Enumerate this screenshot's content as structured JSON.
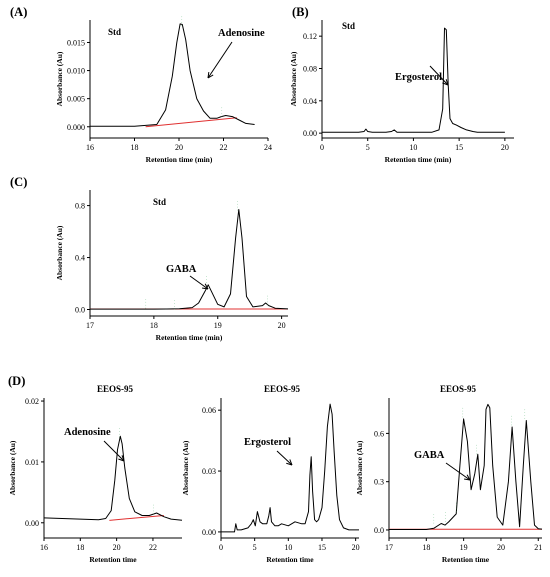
{
  "figure": {
    "labels": {
      "a": "(A)",
      "b": "(B)",
      "c": "(C)",
      "d": "(D)"
    }
  },
  "chart_data": [
    {
      "id": "A",
      "type": "line",
      "subtitle": "Std",
      "xlabel": "Retention time (min)",
      "ylabel": "Absorbance (Au)",
      "xlim": [
        16,
        24
      ],
      "ylim": [
        -0.002,
        0.019
      ],
      "xticks": [
        16,
        18,
        20,
        22,
        24
      ],
      "yticks": [
        0.0,
        0.005,
        0.01,
        0.015
      ],
      "ytick_labels": [
        "0.000",
        "0.005",
        "0.010",
        "0.015"
      ],
      "series": [
        {
          "x": [
            16,
            17,
            18,
            19.0,
            19.4,
            19.7,
            19.9,
            20.05,
            20.15,
            20.3,
            20.5,
            20.8,
            21.1,
            21.4,
            21.7,
            21.9,
            22.1,
            22.4,
            22.7,
            23.0,
            23.4
          ],
          "y": [
            0.0001,
            0.0001,
            0.0001,
            0.0004,
            0.003,
            0.009,
            0.015,
            0.0183,
            0.0182,
            0.0155,
            0.01,
            0.005,
            0.0028,
            0.0015,
            0.0015,
            0.0018,
            0.002,
            0.0018,
            0.0012,
            0.0006,
            0.0004
          ]
        }
      ],
      "baseline": {
        "x": [
          18.5,
          22.6
        ],
        "y": [
          0.0,
          0.0016
        ]
      },
      "annotations": [
        {
          "text": "Adenosine"
        }
      ]
    },
    {
      "id": "B",
      "type": "line",
      "subtitle": "Std",
      "xlabel": "Retention time (min)",
      "ylabel": "Absorbance (Au)",
      "xlim": [
        0,
        21
      ],
      "ylim": [
        -0.006,
        0.14
      ],
      "xticks": [
        0,
        5,
        10,
        15,
        20
      ],
      "yticks": [
        0.0,
        0.04,
        0.08,
        0.12
      ],
      "ytick_labels": [
        "0.00",
        "0.04",
        "0.08",
        "0.12"
      ],
      "series": [
        {
          "x": [
            0,
            1,
            2,
            3,
            4,
            4.6,
            4.8,
            5.0,
            5.5,
            6,
            7,
            7.6,
            7.9,
            8.2,
            9,
            10,
            11,
            12,
            12.8,
            13.2,
            13.4,
            13.6,
            13.8,
            14.0,
            14.3,
            14.7,
            15.2,
            15.8,
            16.5,
            17,
            18,
            20
          ],
          "y": [
            0.001,
            0.001,
            0.001,
            0.001,
            0.001,
            0.002,
            0.005,
            0.002,
            0.001,
            0.001,
            0.001,
            0.002,
            0.004,
            0.001,
            0.001,
            0.001,
            0.001,
            0.001,
            0.004,
            0.03,
            0.13,
            0.128,
            0.06,
            0.018,
            0.012,
            0.01,
            0.007,
            0.004,
            0.002,
            0.001,
            0.001,
            0.001
          ]
        }
      ],
      "annotations": [
        {
          "text": "Ergosterol"
        }
      ]
    },
    {
      "id": "C",
      "type": "line",
      "subtitle": "Std",
      "xlabel": "Retention time (min)",
      "ylabel": "Absorbance (Au)",
      "xlim": [
        17,
        20.1
      ],
      "ylim": [
        -0.05,
        0.92
      ],
      "xticks": [
        17,
        18,
        19,
        20
      ],
      "yticks": [
        0.0,
        0.4,
        0.8
      ],
      "ytick_labels": [
        "0.0",
        "0.4",
        "0.8"
      ],
      "series": [
        {
          "x": [
            17,
            17.5,
            18,
            18.2,
            18.4,
            18.6,
            18.7,
            18.8,
            18.85,
            18.9,
            19.0,
            19.1,
            19.2,
            19.28,
            19.33,
            19.38,
            19.45,
            19.55,
            19.7,
            19.75,
            19.8,
            19.9,
            20.1
          ],
          "y": [
            0.003,
            0.003,
            0.003,
            0.004,
            0.006,
            0.015,
            0.05,
            0.14,
            0.19,
            0.14,
            0.04,
            0.02,
            0.12,
            0.55,
            0.77,
            0.55,
            0.1,
            0.02,
            0.03,
            0.05,
            0.03,
            0.01,
            0.005
          ]
        }
      ],
      "baseline": {
        "x": [
          17.0,
          20.1
        ],
        "y": [
          0.004,
          0.004
        ]
      },
      "annotations": [
        {
          "text": "GABA"
        }
      ]
    },
    {
      "id": "D1",
      "type": "line",
      "subtitle": "EEOS-95",
      "xlabel": "Retention time",
      "ylabel": "Absorbance (Au)",
      "xlim": [
        16,
        23.6
      ],
      "ylim": [
        -0.0025,
        0.0205
      ],
      "xticks": [
        16,
        18,
        20,
        22
      ],
      "yticks": [
        0.0,
        0.01,
        0.02
      ],
      "ytick_labels": [
        "0.00",
        "0.01",
        "0.02"
      ],
      "series": [
        {
          "x": [
            16,
            17,
            18,
            19,
            19.4,
            19.7,
            19.9,
            20.05,
            20.2,
            20.3,
            20.45,
            20.7,
            21.0,
            21.4,
            21.8,
            22.2,
            22.6,
            23.0,
            23.6
          ],
          "y": [
            0.0008,
            0.0007,
            0.0006,
            0.0005,
            0.0007,
            0.002,
            0.007,
            0.012,
            0.0142,
            0.013,
            0.009,
            0.004,
            0.0018,
            0.0012,
            0.0012,
            0.0016,
            0.001,
            0.0006,
            0.0004
          ]
        }
      ],
      "baseline": {
        "x": [
          19.6,
          22.6
        ],
        "y": [
          0.0004,
          0.0012
        ]
      },
      "annotations": [
        {
          "text": "Adenosine"
        }
      ]
    },
    {
      "id": "D2",
      "type": "line",
      "subtitle": "EEOS-95",
      "xlabel": "Retention time",
      "ylabel": "Absorbance (Au)",
      "xlim": [
        0,
        20.5
      ],
      "ylim": [
        -0.003,
        0.066
      ],
      "xticks": [
        0,
        5,
        10,
        15,
        20
      ],
      "yticks": [
        0.0,
        0.03,
        0.06
      ],
      "ytick_labels": [
        "0.00",
        "0.03",
        "0.06"
      ],
      "series": [
        {
          "x": [
            0,
            1,
            2,
            2.2,
            2.4,
            3,
            4,
            4.5,
            4.8,
            5.1,
            5.4,
            5.8,
            6.2,
            6.8,
            7.1,
            7.3,
            7.5,
            8,
            8.5,
            9,
            10,
            11,
            12,
            12.5,
            13,
            13.2,
            13.4,
            13.6,
            13.9,
            14.2,
            14.5,
            15,
            15.4,
            15.8,
            16.2,
            16.5,
            16.8,
            17.2,
            17.6,
            18.2,
            19,
            20.5
          ],
          "y": [
            0.0,
            0.0,
            0.0,
            0.004,
            0.001,
            0.001,
            0.002,
            0.004,
            0.006,
            0.003,
            0.01,
            0.005,
            0.004,
            0.004,
            0.008,
            0.012,
            0.005,
            0.003,
            0.003,
            0.004,
            0.003,
            0.005,
            0.004,
            0.004,
            0.01,
            0.028,
            0.037,
            0.02,
            0.006,
            0.005,
            0.006,
            0.012,
            0.03,
            0.052,
            0.063,
            0.058,
            0.04,
            0.018,
            0.006,
            0.002,
            0.001,
            0.001
          ]
        }
      ],
      "annotations": [
        {
          "text": "Ergosterol"
        }
      ]
    },
    {
      "id": "D3",
      "type": "line",
      "subtitle": "EEOS-95",
      "xlabel": "Retention time",
      "ylabel": "Absorbance (Au)",
      "xlim": [
        17,
        21.1
      ],
      "ylim": [
        -0.05,
        0.82
      ],
      "xticks": [
        17,
        18,
        19,
        20,
        21
      ],
      "yticks": [
        0.0,
        0.3,
        0.6
      ],
      "ytick_labels": [
        "0.0",
        "0.3",
        "0.6"
      ],
      "series": [
        {
          "x": [
            17,
            17.5,
            18,
            18.2,
            18.4,
            18.5,
            18.6,
            18.8,
            18.9,
            19.0,
            19.1,
            19.2,
            19.3,
            19.38,
            19.45,
            19.55,
            19.6,
            19.65,
            19.7,
            19.78,
            19.9,
            20.05,
            20.2,
            20.3,
            20.4,
            20.5,
            20.6,
            20.68,
            20.8,
            20.9,
            21.0,
            21.1
          ],
          "y": [
            0.003,
            0.003,
            0.003,
            0.01,
            0.04,
            0.03,
            0.05,
            0.1,
            0.4,
            0.69,
            0.55,
            0.25,
            0.35,
            0.47,
            0.25,
            0.4,
            0.75,
            0.78,
            0.76,
            0.4,
            0.08,
            0.03,
            0.3,
            0.64,
            0.3,
            0.02,
            0.4,
            0.68,
            0.3,
            0.03,
            0.008,
            0.005
          ]
        }
      ],
      "baseline": {
        "x": [
          17.0,
          21.1
        ],
        "y": [
          0.004,
          0.004
        ]
      },
      "annotations": [
        {
          "text": "GABA"
        }
      ]
    }
  ]
}
